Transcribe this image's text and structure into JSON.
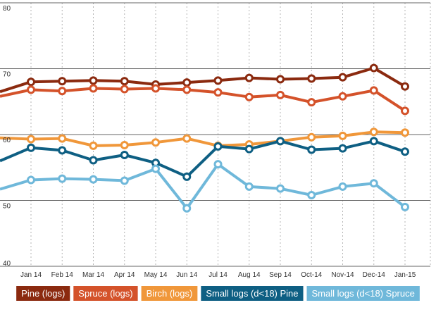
{
  "chart_data": {
    "type": "line",
    "categories": [
      "Jan 14",
      "Feb 14",
      "Mar 14",
      "Apr 14",
      "May 14",
      "Jun 14",
      "Jul 14",
      "Aug 14",
      "Sep 14",
      "Oct-14",
      "Nov-14",
      "Dec-14",
      "Jan-15"
    ],
    "ylim": [
      40,
      80
    ],
    "yticks": [
      40,
      50,
      60,
      70,
      80
    ],
    "grid": true,
    "legend_position": "bottom",
    "series": [
      {
        "name": "Pine (logs)",
        "color": "#8b2a0f",
        "first_value": 66.5,
        "values": [
          68.0,
          68.1,
          68.2,
          68.1,
          67.6,
          67.9,
          68.2,
          68.6,
          68.4,
          68.5,
          68.7,
          70.1,
          67.3
        ]
      },
      {
        "name": "Spruce (logs)",
        "color": "#d4522a",
        "first_value": 65.8,
        "values": [
          66.8,
          66.6,
          67.0,
          66.9,
          67.0,
          66.8,
          66.4,
          65.7,
          66.0,
          64.9,
          65.8,
          66.7,
          63.6
        ]
      },
      {
        "name": "Birch (logs)",
        "color": "#f0973a",
        "first_value": 59.5,
        "values": [
          59.3,
          59.4,
          58.3,
          58.4,
          58.8,
          59.4,
          58.3,
          58.5,
          59.0,
          59.6,
          59.8,
          60.4,
          60.3
        ]
      },
      {
        "name": "Small logs (d<18) Pine",
        "color": "#0e5f83",
        "first_value": 56.0,
        "values": [
          58.0,
          57.6,
          56.1,
          56.9,
          55.7,
          53.6,
          58.2,
          57.8,
          59.0,
          57.7,
          57.9,
          59.0,
          57.4
        ]
      },
      {
        "name": "Small logs (d<18) Spruce",
        "color": "#6fb8da",
        "first_value": 51.7,
        "values": [
          53.1,
          53.3,
          53.2,
          53.0,
          54.8,
          48.8,
          55.5,
          52.1,
          51.8,
          50.8,
          52.1,
          52.6,
          49.0
        ]
      }
    ]
  }
}
